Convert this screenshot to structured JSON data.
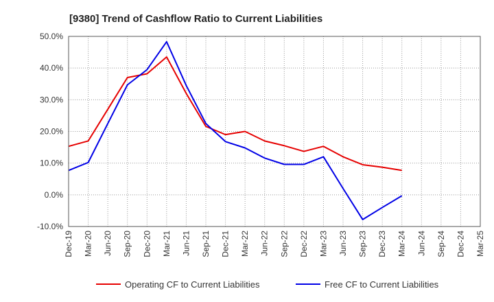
{
  "chart_data": {
    "type": "line",
    "title": "[9380]  Trend of Cashflow Ratio to Current Liabilities",
    "xlabel": "",
    "ylabel": "",
    "categories": [
      "Dec-19",
      "Mar-20",
      "Jun-20",
      "Sep-20",
      "Dec-20",
      "Mar-21",
      "Jun-21",
      "Sep-21",
      "Dec-21",
      "Mar-22",
      "Jun-22",
      "Sep-22",
      "Dec-22",
      "Mar-23",
      "Jun-23",
      "Sep-23",
      "Dec-23",
      "Mar-24",
      "Jun-24",
      "Sep-24",
      "Dec-24",
      "Mar-25"
    ],
    "ylim": [
      -10,
      50
    ],
    "yticks": [
      -10,
      0,
      10,
      20,
      30,
      40,
      50
    ],
    "ytick_labels": [
      "-10.0%",
      "0.0%",
      "10.0%",
      "20.0%",
      "30.0%",
      "40.0%",
      "50.0%"
    ],
    "grid": true,
    "legend_position": "bottom",
    "series": [
      {
        "name": "Operating CF to Current Liabilities",
        "color": "#e60000",
        "values": [
          15.3,
          17.0,
          27.0,
          37.0,
          38.2,
          43.5,
          32.0,
          21.6,
          19.0,
          20.0,
          17.0,
          15.5,
          13.7,
          15.3,
          12.0,
          9.5,
          8.7,
          7.7,
          null,
          null,
          null,
          null
        ]
      },
      {
        "name": "Free CF to Current Liabilities",
        "color": "#0000e6",
        "values": [
          7.7,
          10.2,
          22.5,
          34.7,
          39.5,
          48.3,
          34.5,
          22.5,
          16.8,
          14.8,
          11.6,
          9.6,
          9.6,
          12.0,
          2.0,
          -7.8,
          -4.0,
          -0.3,
          null,
          null,
          null,
          null
        ]
      }
    ]
  }
}
